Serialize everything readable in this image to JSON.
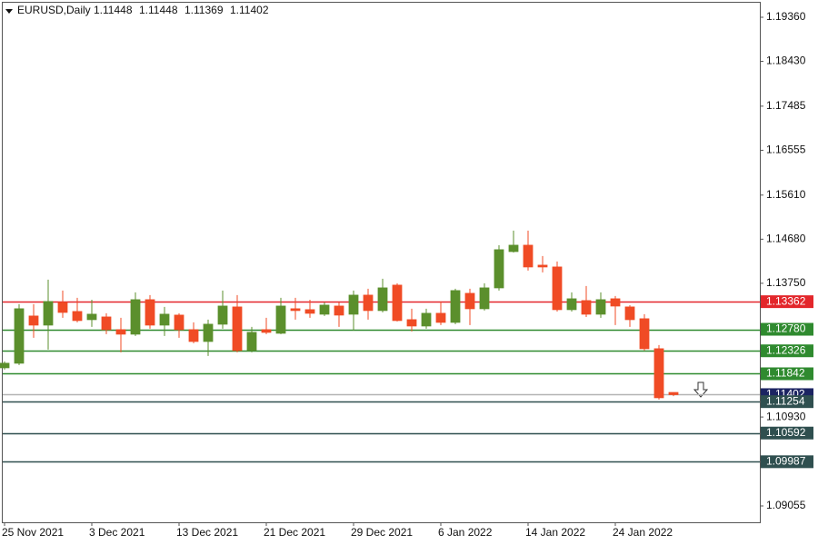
{
  "chart_data": {
    "type": "candlestick",
    "title": "EURUSD,Daily",
    "categories": [
      "25 Nov 2021",
      null,
      null,
      null,
      null,
      null,
      "3 Dec 2021",
      null,
      null,
      null,
      null,
      null,
      "13 Dec 2021",
      null,
      null,
      null,
      null,
      null,
      "21 Dec 2021",
      null,
      null,
      null,
      null,
      null,
      "29 Dec 2021",
      null,
      null,
      null,
      null,
      null,
      "6 Jan 2022",
      null,
      null,
      null,
      null,
      null,
      "14 Jan 2022",
      null,
      null,
      null,
      null,
      null,
      "24 Jan 2022",
      null,
      null,
      null,
      null
    ],
    "open": [
      1.11968,
      1.12064,
      1.1306,
      1.12868,
      1.13347,
      1.13155,
      1.12983,
      1.1304,
      1.12772,
      1.12677,
      1.13404,
      1.12868,
      1.13079,
      1.12772,
      1.12523,
      1.12887,
      1.13251,
      1.12332,
      1.12772,
      1.12696,
      1.13213,
      1.13194,
      1.13098,
      1.1327,
      1.13098,
      1.135,
      1.13175,
      1.13711,
      1.12983,
      1.12849,
      1.13117,
      1.12926,
      1.13538,
      1.13213,
      1.13653,
      1.14419,
      1.14553,
      1.14132,
      1.14094,
      1.13194,
      1.13385,
      1.13098,
      1.13423,
      1.13251,
      1.13002,
      1.1237,
      1.11448
    ],
    "high": [
      1.12102,
      1.13309,
      1.13309,
      1.13826,
      1.13596,
      1.13443,
      1.13404,
      1.13117,
      1.13021,
      1.13558,
      1.135,
      1.13251,
      1.13117,
      1.12926,
      1.12983,
      1.13596,
      1.135,
      1.1283,
      1.13021,
      1.13443,
      1.13443,
      1.13404,
      1.13347,
      1.13347,
      1.13596,
      1.13634,
      1.13845,
      1.13749,
      1.13213,
      1.13213,
      1.13366,
      1.13634,
      1.13634,
      1.13749,
      1.14553,
      1.1486,
      1.1486,
      1.14324,
      1.14209,
      1.13558,
      1.13692,
      1.13558,
      1.13481,
      1.13289,
      1.13098,
      1.12447,
      1.11448
    ],
    "low": [
      1.1193,
      1.12026,
      1.126,
      1.12351,
      1.13021,
      1.12926,
      1.1283,
      1.12677,
      1.12294,
      1.12638,
      1.12792,
      1.12638,
      1.126,
      1.12485,
      1.12217,
      1.12792,
      1.12294,
      1.12294,
      1.12677,
      1.12677,
      1.12983,
      1.13021,
      1.1306,
      1.1283,
      1.12753,
      1.12983,
      1.13136,
      1.12945,
      1.12734,
      1.12792,
      1.12868,
      1.12887,
      1.12868,
      1.13175,
      1.13596,
      1.144,
      1.14017,
      1.13979,
      1.13155,
      1.13155,
      1.1304,
      1.13021,
      1.12868,
      1.1283,
      1.12332,
      1.11298,
      1.11369
    ],
    "close": [
      1.12064,
      1.13213,
      1.12868,
      1.13366,
      1.13136,
      1.12964,
      1.13098,
      1.12772,
      1.12677,
      1.13404,
      1.12868,
      1.13098,
      1.12772,
      1.12523,
      1.12887,
      1.1327,
      1.12332,
      1.12715,
      1.12715,
      1.1327,
      1.13175,
      1.13117,
      1.13289,
      1.13079,
      1.135,
      1.13175,
      1.13653,
      1.12964,
      1.12849,
      1.13117,
      1.12926,
      1.13596,
      1.13213,
      1.13653,
      1.14458,
      1.14553,
      1.14094,
      1.14094,
      1.13194,
      1.13423,
      1.13098,
      1.13404,
      1.1327,
      1.12983,
      1.1237,
      1.11336,
      1.11402
    ],
    "up_color": "#5b8f2c",
    "down_color": "#f04b25",
    "ylim": [
      1.0871,
      1.19628
    ],
    "yticks": [
      {
        "value": 1.1936,
        "label": "1.19360"
      },
      {
        "value": 1.1843,
        "label": "1.18430"
      },
      1.17485,
      1.16555,
      {
        "value": 1.1561,
        "label": "1.15610"
      },
      {
        "value": 1.1468,
        "label": "1.14680"
      },
      {
        "value": 1.1375,
        "label": "1.13750"
      },
      {
        "value": 1.1093,
        "label": "1.10930"
      },
      1.09055
    ],
    "levels": [
      {
        "value": 1.13362,
        "color": "#e3262b",
        "line_color": "#e3262b"
      },
      {
        "value": 1.1278,
        "label": "1.12780",
        "color": "#2f8a2f",
        "line_color": "#2f8a2f"
      },
      {
        "value": 1.12326,
        "color": "#2f8a2f",
        "line_color": "#2f8a2f"
      },
      {
        "value": 1.11842,
        "color": "#2f8a2f",
        "line_color": "#2f8a2f"
      },
      {
        "value": 1.11402,
        "color": "#1c2462",
        "line_color": "#b4b4b4"
      },
      {
        "value": 1.11254,
        "color": "#2f4f4f",
        "line_color": "#2f4f4f"
      },
      {
        "value": 1.10592,
        "color": "#2f4f4f",
        "line_color": "#2f4f4f"
      },
      {
        "value": 1.09987,
        "color": "#2f4f4f",
        "line_color": "#2f4f4f"
      }
    ]
  }
}
